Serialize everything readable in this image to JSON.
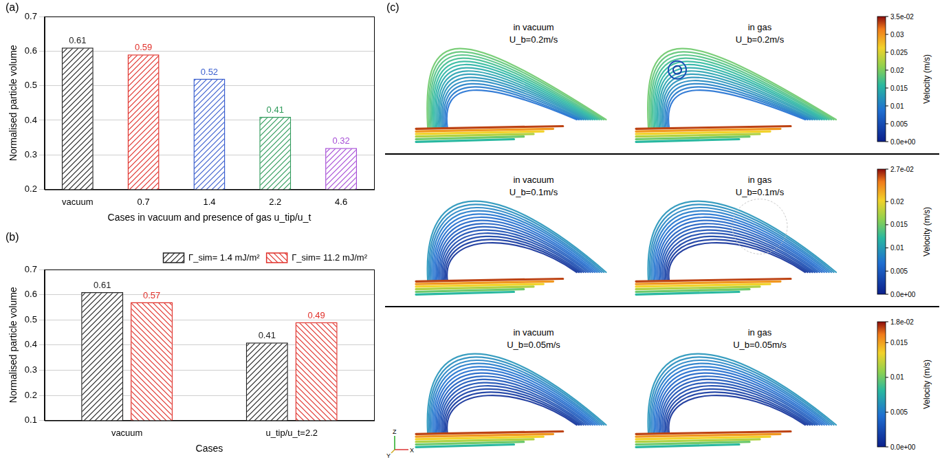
{
  "chart_data": [
    {
      "panel_label": "(a)",
      "type": "bar",
      "x_label": "Cases in vacuum and presence of gas u_tip/u_t",
      "y_label": "Normalised particle volume",
      "categories": [
        "vacuum",
        "0.7",
        "1.4",
        "2.2",
        "4.6"
      ],
      "values": [
        0.61,
        0.59,
        0.52,
        0.41,
        0.32
      ],
      "colors": [
        "#222222",
        "#e0302a",
        "#3b5fcf",
        "#2e9a5a",
        "#a64dd6"
      ],
      "data_labels": true,
      "ylim": [
        0.2,
        0.7
      ],
      "yticks": [
        0.2,
        0.3,
        0.4,
        0.5,
        0.6,
        0.7
      ],
      "grid": true
    },
    {
      "panel_label": "(b)",
      "type": "bar",
      "x_label": "Cases",
      "y_label": "Normalised particle volume",
      "categories": [
        "vacuum",
        "u_tip/u_t=2.2"
      ],
      "series": [
        {
          "name": "Γ_sim= 1.4 mJ/m²",
          "color": "#222222",
          "values": [
            0.61,
            0.41
          ]
        },
        {
          "name": "Γ_sim= 11.2 mJ/m²",
          "color": "#e0302a",
          "values": [
            0.57,
            0.49
          ]
        }
      ],
      "legend": "upper right",
      "data_labels": true,
      "ylim": [
        0.1,
        0.7
      ],
      "yticks": [
        0.1,
        0.2,
        0.3,
        0.4,
        0.5,
        0.6,
        0.7
      ],
      "grid": true
    }
  ],
  "panel_c": {
    "panel_label": "(c)",
    "axis_triad": [
      "X",
      "Y",
      "Z"
    ],
    "rows": [
      {
        "panels": [
          {
            "title": "in vacuum",
            "subtitle": "U_b=0.2m/s"
          },
          {
            "title": "in gas",
            "subtitle": "U_b=0.2m/s"
          }
        ],
        "colorbar": {
          "title": "Velocity (m/s)",
          "range": [
            0,
            0.035
          ],
          "ticks": [
            {
              "value": 0,
              "label": "0.0e+00"
            },
            0.005,
            0.01,
            0.015,
            0.02,
            0.025,
            0.03,
            {
              "value": 0.035,
              "label": "3.5e-02"
            }
          ]
        }
      },
      {
        "panels": [
          {
            "title": "in vacuum",
            "subtitle": "U_b=0.1m/s"
          },
          {
            "title": "in gas",
            "subtitle": "U_b=0.1m/s"
          }
        ],
        "colorbar": {
          "title": "Velocity (m/s)",
          "range": [
            0,
            0.027
          ],
          "ticks": [
            {
              "value": 0,
              "label": "0.0e+00"
            },
            0.005,
            0.01,
            0.015,
            0.02,
            {
              "value": 0.027,
              "label": "2.7e-02"
            }
          ]
        }
      },
      {
        "panels": [
          {
            "title": "in vacuum",
            "subtitle": "U_b=0.05m/s"
          },
          {
            "title": "in gas",
            "subtitle": "U_b=0.05m/s"
          }
        ],
        "colorbar": {
          "title": "Velocity (m/s)",
          "range": [
            0,
            0.018
          ],
          "ticks": [
            {
              "value": 0,
              "label": "0.0e+00"
            },
            0.005,
            0.01,
            0.015,
            {
              "value": 0.018,
              "label": "1.8e-02"
            }
          ]
        }
      }
    ]
  }
}
